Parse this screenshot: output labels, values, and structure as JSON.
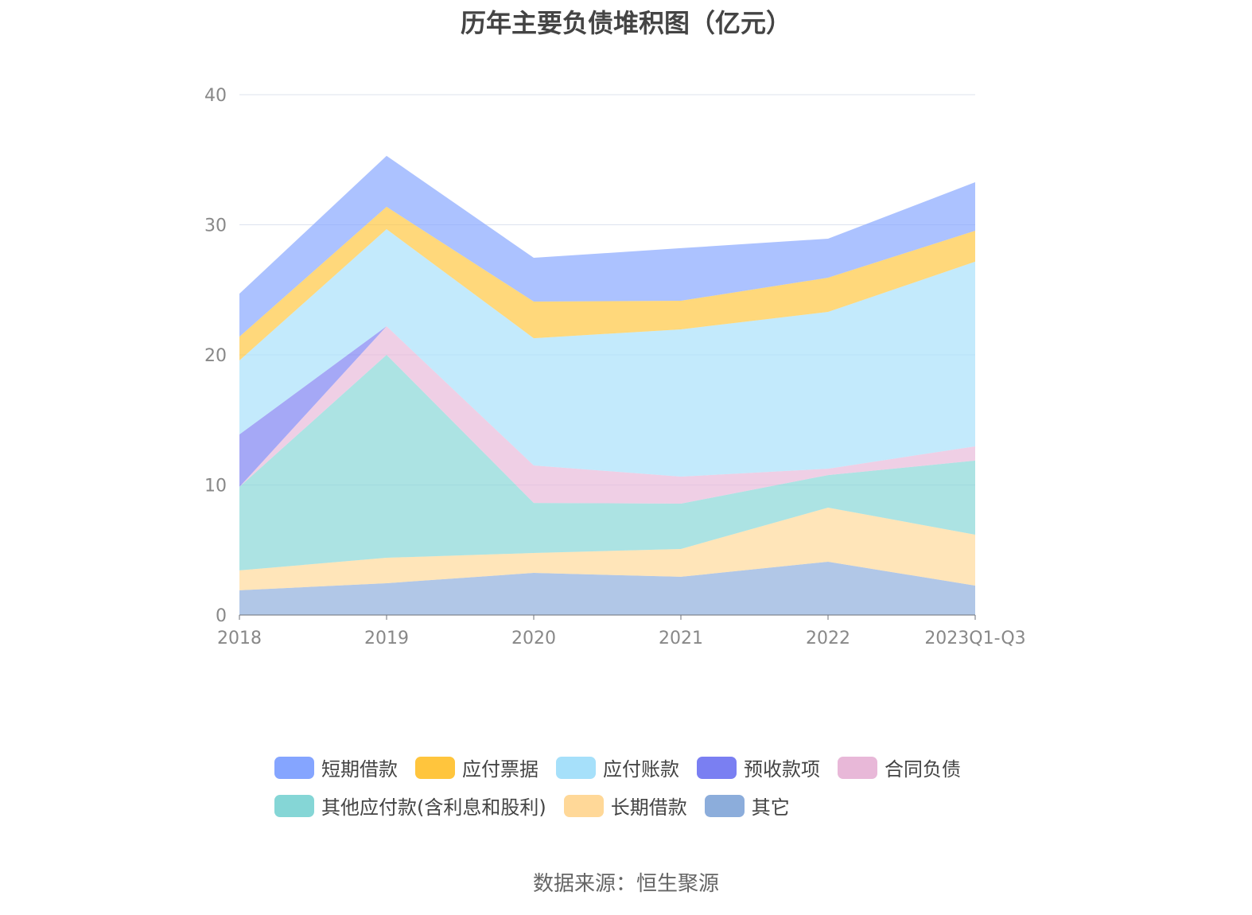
{
  "chart_data": {
    "type": "area",
    "stacked": true,
    "title": "历年主要负债堆积图（亿元）",
    "categories": [
      "2018",
      "2019",
      "2020",
      "2021",
      "2022",
      "2023Q1-Q3"
    ],
    "ylim": [
      0,
      40
    ],
    "yticks": [
      0,
      10,
      20,
      30,
      40
    ],
    "grid": true,
    "legend_position": "bottom",
    "series": [
      {
        "name": "短期借款",
        "color": "#85a5ff",
        "values": [
          3.3,
          3.92,
          3.36,
          4.04,
          3.0,
          3.73
        ]
      },
      {
        "name": "应付票据",
        "color": "#ffc53d",
        "values": [
          1.83,
          1.72,
          2.82,
          2.2,
          2.63,
          2.38
        ]
      },
      {
        "name": "应付账款",
        "color": "#a6e0fa",
        "values": [
          5.69,
          7.46,
          9.78,
          11.32,
          12.05,
          14.19
        ]
      },
      {
        "name": "预收款项",
        "color": "#7a7ff2",
        "values": [
          4.03,
          0,
          0,
          0,
          0,
          0
        ]
      },
      {
        "name": "合同负债",
        "color": "#e8b8d8",
        "values": [
          0,
          2.2,
          2.88,
          2.08,
          0.49,
          1.1
        ]
      },
      {
        "name": "其他应付款(含利息和股利)",
        "color": "#85d6d6",
        "values": [
          6.42,
          15.6,
          3.85,
          3.48,
          2.5,
          5.69
        ]
      },
      {
        "name": "长期借款",
        "color": "#ffd898",
        "values": [
          1.53,
          1.95,
          1.53,
          2.14,
          4.16,
          3.92
        ]
      },
      {
        "name": "其它",
        "color": "#8caddb",
        "values": [
          1.9,
          2.45,
          3.24,
          2.94,
          4.1,
          2.26
        ]
      }
    ]
  },
  "source": "数据来源：恒生聚源"
}
